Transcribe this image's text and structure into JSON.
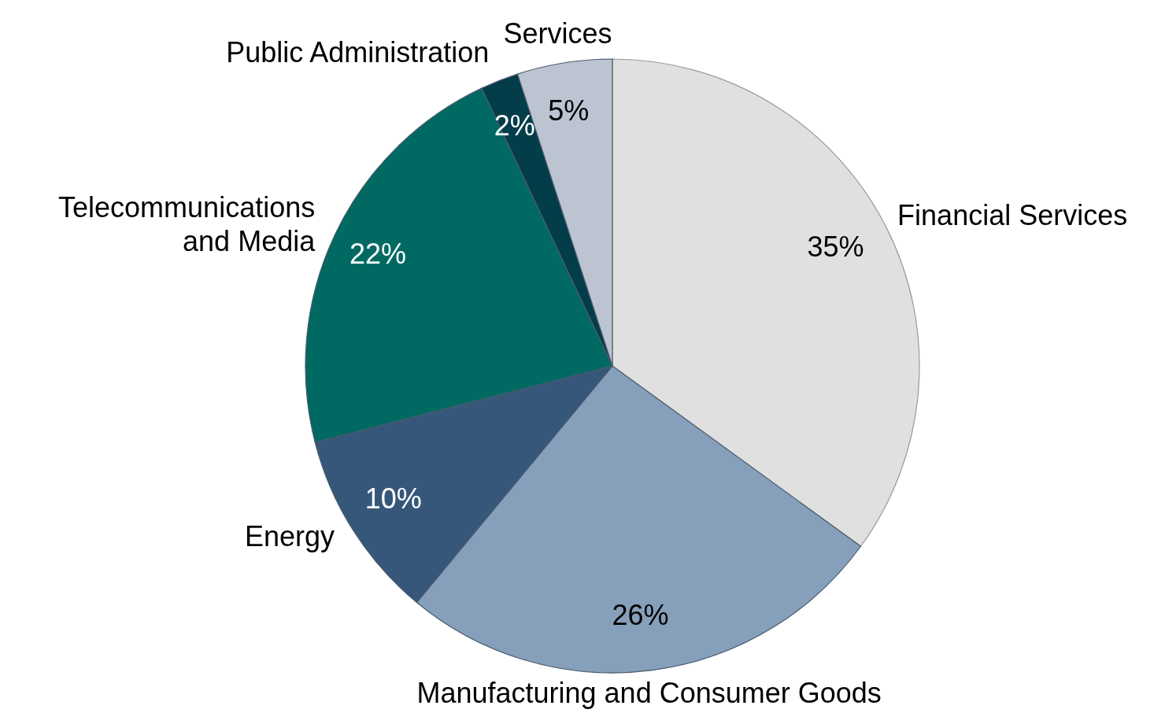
{
  "chart_data": {
    "type": "pie",
    "categories": [
      "Financial Services",
      "Manufacturing and Consumer Goods",
      "Energy",
      "Telecommunications and Media",
      "Public Administration",
      "Services"
    ],
    "values": [
      35,
      26,
      10,
      22,
      2,
      5
    ],
    "value_labels": [
      "35%",
      "26%",
      "10%",
      "22%",
      "2%",
      "5%"
    ],
    "colors": [
      "#e0e0e0",
      "#869fba",
      "#36577a",
      "#006a62",
      "#033d4a",
      "#bcc4d1"
    ],
    "legend": false
  }
}
